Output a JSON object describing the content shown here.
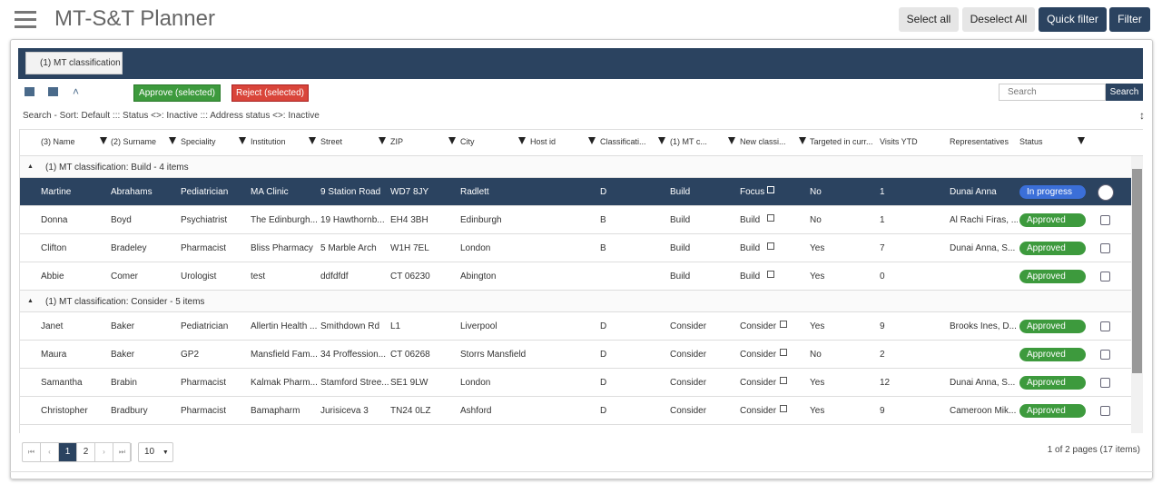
{
  "header": {
    "title": "MT-S&T Planner",
    "buttons": [
      "Select all",
      "Deselect All",
      "Quick filter",
      "Filter"
    ]
  },
  "group_tab": "(1) MT classification",
  "toolbar": {
    "approve": "Approve (selected)",
    "reject": "Reject (selected)",
    "search_placeholder": "Search",
    "search_button": "Search"
  },
  "filter_summary": "Search - Sort: Default ::: Status <>: Inactive ::: Address status <>: Inactive",
  "table": {
    "columns": [
      "(3) Name",
      "(2) Surname",
      "Speciality",
      "Institution",
      "Street",
      "ZIP",
      "City",
      "Host id",
      "Classificati...",
      "(1) MT c...",
      "New classi...",
      "Targeted in curr...",
      "Visits YTD",
      "Representatives",
      "Status"
    ],
    "groups": [
      {
        "label": "(1) MT classification: Build - 4 items",
        "rows": [
          [
            "Martine",
            "Abrahams",
            "Pediatrician",
            "MA Clinic",
            "9 Station Road",
            "WD7 8JY",
            "Radlett",
            null,
            "D",
            "Build",
            "Focus",
            "No",
            1,
            "Dunai Anna",
            "In progress"
          ],
          [
            "Donna",
            "Boyd",
            "Psychiatrist",
            "The Edinburgh...",
            "19 Hawthornb...",
            "EH4 3BH",
            "Edinburgh",
            null,
            "B",
            "Build",
            "Build",
            "No",
            1,
            "Al Rachi Firas, ...",
            "Approved"
          ],
          [
            "Clifton",
            "Bradeley",
            "Pharmacist",
            "Bliss Pharmacy",
            "5 Marble Arch",
            "W1H 7EL",
            "London",
            null,
            "B",
            "Build",
            "Build",
            "Yes",
            7,
            "Dunai Anna, S...",
            "Approved"
          ],
          [
            "Abbie",
            "Comer",
            "Urologist",
            "test",
            "ddfdfdf",
            "CT 06230",
            "Abington",
            null,
            null,
            "Build",
            "Build",
            "Yes",
            0,
            null,
            "Approved"
          ]
        ]
      },
      {
        "label": "(1) MT classification: Consider - 5 items",
        "rows": [
          [
            "Janet",
            "Baker",
            "Pediatrician",
            "Allertin Health ...",
            "Smithdown Rd",
            "L1",
            "Liverpool",
            null,
            "D",
            "Consider",
            "Consider",
            "Yes",
            9,
            "Brooks Ines, D...",
            "Approved"
          ],
          [
            "Maura",
            "Baker",
            "GP2",
            "Mansfield Fam...",
            "34 Proffession...",
            "CT 06268",
            "Storrs Mansfield",
            null,
            "D",
            "Consider",
            "Consider",
            "No",
            2,
            null,
            "Approved"
          ],
          [
            "Samantha",
            "Brabin",
            "Pharmacist",
            "Kalmak Pharm...",
            "Stamford Stree...",
            "SE1 9LW",
            "London",
            null,
            "D",
            "Consider",
            "Consider",
            "Yes",
            12,
            "Dunai Anna, S...",
            "Approved"
          ],
          [
            "Christopher",
            "Bradbury",
            "Pharmacist",
            "Bamapharm",
            "Jurisiceva 3",
            "TN24 0LZ",
            "Ashford",
            null,
            "D",
            "Consider",
            "Consider",
            "Yes",
            9,
            "Cameroon Mik...",
            "Approved"
          ]
        ]
      }
    ]
  },
  "pager": {
    "pages": [
      "1",
      "2"
    ],
    "page_size": "10",
    "info": "1 of 2 pages (17 items)"
  }
}
